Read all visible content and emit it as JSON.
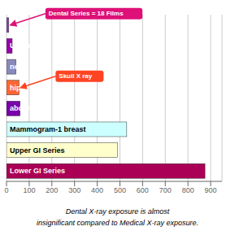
{
  "chart_data": {
    "type": "bar",
    "orientation": "horizontal",
    "subtitle": [
      "Dental X-ray exposure is almost",
      "insignificant compared to Medical X-ray exposure."
    ],
    "categories": [
      "Lower GI Series",
      "Upper GI Series",
      "Mammogram-1 breast",
      "abdominal",
      "hip",
      "neck",
      "Upper leg",
      null
    ],
    "values": [
      875,
      490,
      530,
      60,
      55,
      42,
      25,
      10
    ],
    "colors": [
      "#aa0055",
      "#ffffcc",
      "#ccffff",
      "#7700aa",
      "#ff6633",
      "#8888bb",
      "#9900aa",
      "#8844aa"
    ],
    "xlim": [
      0,
      950
    ],
    "xticks": [
      0,
      100,
      200,
      300,
      400,
      500,
      600,
      700,
      800,
      900
    ],
    "grid": true,
    "tick_labels": "x",
    "annotations": [
      {
        "text": "Dental Series = 18 Films",
        "x": 10,
        "y": 7,
        "color": "#dd1177"
      },
      {
        "text": "Skull X ray",
        "x": 55,
        "y": 4,
        "color": "#ff4422"
      }
    ]
  }
}
